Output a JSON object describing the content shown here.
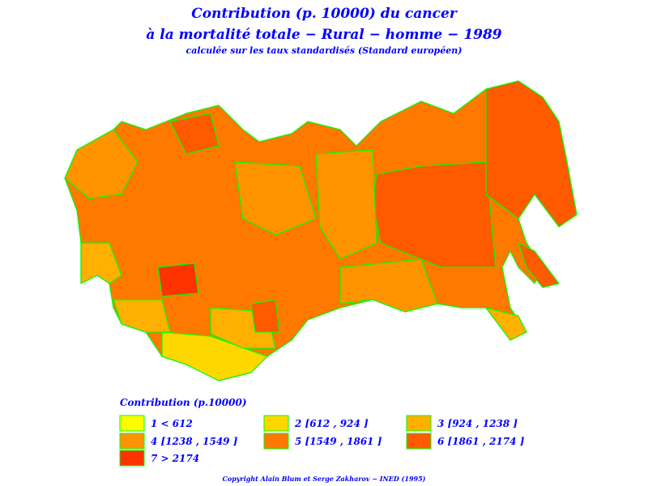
{
  "header": {
    "title": "Contribution (p. 10000) du cancer",
    "title_line2": "à la mortalité totale − Rural − homme − 1989",
    "subtitle": "calculée sur les taux standardisés (Standard européen)"
  },
  "legend": {
    "title": "Contribution (p.10000)",
    "classes": [
      {
        "label": "1  <  612",
        "color": "#ffff00"
      },
      {
        "label": "2  [612  ,  924 ]",
        "color": "#ffd700"
      },
      {
        "label": "3  [924  ,  1238 ]",
        "color": "#ffb000"
      },
      {
        "label": "4  [1238  ,  1549 ]",
        "color": "#ff9400"
      },
      {
        "label": "5  [1549  ,  1861 ]",
        "color": "#ff7800"
      },
      {
        "label": "6  [1861  ,  2174 ]",
        "color": "#ff5a00"
      },
      {
        "label": "7  >  2174",
        "color": "#ff3300"
      }
    ]
  },
  "footer": {
    "copyright": "Copyright Alain Blum et Serge Zakharov − INED (1995)"
  }
}
